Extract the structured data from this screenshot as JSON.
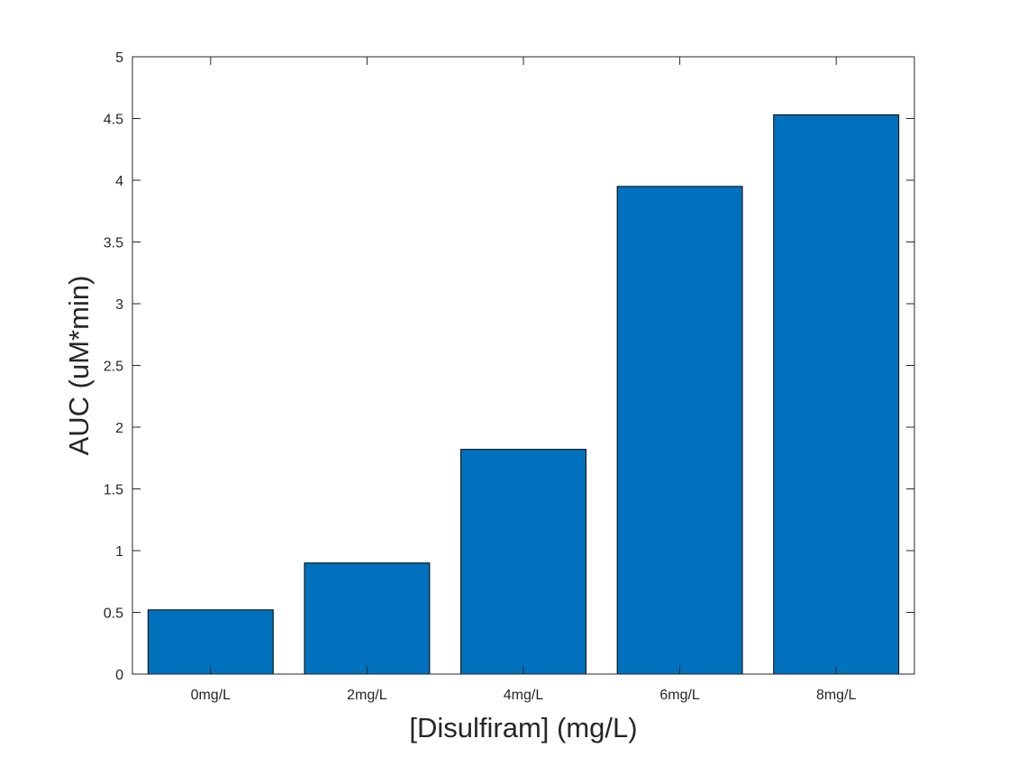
{
  "chart_data": {
    "type": "bar",
    "title": "",
    "xlabel": "[Disulfiram] (mg/L)",
    "ylabel": "AUC (uM*min)",
    "categories": [
      "0mg/L",
      "2mg/L",
      "4mg/L",
      "6mg/L",
      "8mg/L"
    ],
    "values": [
      0.52,
      0.9,
      1.82,
      3.95,
      4.53
    ],
    "ylim": [
      0,
      5
    ],
    "yticks": [
      "0",
      "0.5",
      "1",
      "1.5",
      "2",
      "2.5",
      "3",
      "3.5",
      "4",
      "4.5",
      "5"
    ],
    "grid": false,
    "legend": "none",
    "bar_color": "#0072BD",
    "bar_edge_color": "#000000"
  }
}
